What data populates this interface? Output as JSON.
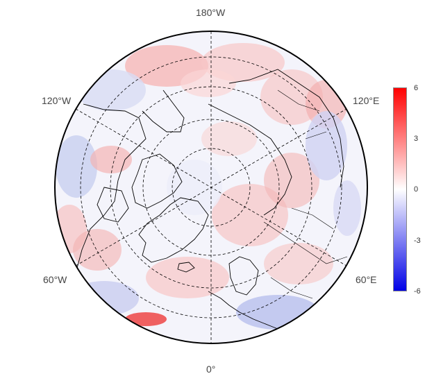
{
  "map": {
    "projection": "north-polar-stereographic",
    "lon_labels": {
      "top": "180°W",
      "bottom": "0°",
      "upper_left": "120°W",
      "upper_right": "120°E",
      "lower_left": "60°W",
      "lower_right": "60°E"
    },
    "grid": "dashed",
    "colors": {
      "neg_max": "#0000e6",
      "zero": "#ffffff",
      "pos_max": "#ff0000",
      "coastline": "#000000"
    }
  },
  "colorbar": {
    "vmin": -6,
    "vmax": 6,
    "ticks": [
      "6",
      "3",
      "0",
      "-3",
      "-6"
    ]
  }
}
